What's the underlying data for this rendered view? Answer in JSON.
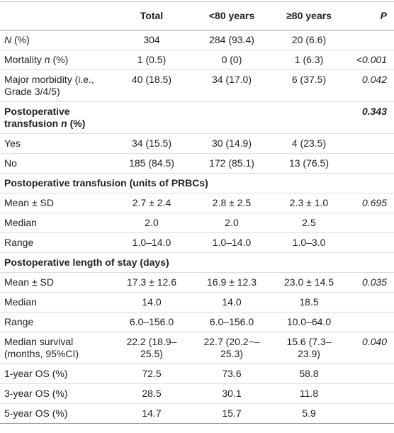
{
  "table": {
    "header": [
      "Total",
      "<80 years",
      "≥80 years",
      "P"
    ],
    "rows": [
      {
        "label": [
          {
            "text": "N",
            "italic": true
          },
          {
            "text": " (%)"
          }
        ],
        "cells": [
          "304",
          "284 (93.4)",
          "20 (6.6)"
        ]
      },
      {
        "label": [
          {
            "text": "Mortality "
          },
          {
            "text": "n",
            "italic": true
          },
          {
            "text": " (%)"
          }
        ],
        "cells": [
          "1 (0.5)",
          "0 (0)",
          "1 (6.3)"
        ],
        "p": "<0.001"
      },
      {
        "label": [
          {
            "text": "Major morbidity (i.e., Grade 3/4/5)"
          }
        ],
        "cells": [
          "40 (18.5)",
          "34 (17.0)",
          "6 (37.5)"
        ],
        "p": "0.042"
      },
      {
        "section": true,
        "label": [
          {
            "text": "Postoperative transfusion "
          },
          {
            "text": "n",
            "italic": true
          },
          {
            "text": " (%)"
          }
        ],
        "p": "0.343"
      },
      {
        "label": [
          {
            "text": "Yes"
          }
        ],
        "cells": [
          "34 (15.5)",
          "30 (14.9)",
          "4 (23.5)"
        ]
      },
      {
        "label": [
          {
            "text": "No"
          }
        ],
        "cells": [
          "185 (84.5)",
          "172 (85.1)",
          "13 (76.5)"
        ]
      },
      {
        "section": true,
        "span": true,
        "label": [
          {
            "text": "Postoperative transfusion (units of PRBCs)"
          }
        ]
      },
      {
        "label": [
          {
            "text": "Mean ± SD"
          }
        ],
        "cells": [
          "2.7 ± 2.4",
          "2.8 ± 2.5",
          "2.3 ± 1.0"
        ],
        "p": "0.695"
      },
      {
        "label": [
          {
            "text": "Median"
          }
        ],
        "cells": [
          "2.0",
          "2.0",
          "2.5"
        ]
      },
      {
        "label": [
          {
            "text": "Range"
          }
        ],
        "cells": [
          "1.0–14.0",
          "1.0–14.0",
          "1.0–3.0"
        ]
      },
      {
        "section": true,
        "span": true,
        "label": [
          {
            "text": "Postoperative length of stay (days)"
          }
        ]
      },
      {
        "label": [
          {
            "text": "Mean ± SD"
          }
        ],
        "cells": [
          "17.3 ± 12.6",
          "16.9 ± 12.3",
          "23.0 ± 14.5"
        ],
        "p": "0.035"
      },
      {
        "label": [
          {
            "text": "Median"
          }
        ],
        "cells": [
          "14.0",
          "14.0",
          "18.5"
        ]
      },
      {
        "label": [
          {
            "text": "Range"
          }
        ],
        "cells": [
          "6.0–156.0",
          "6.0–156.0",
          "10.0–64.0"
        ]
      },
      {
        "label": [
          {
            "text": "Median survival (months, 95%CI)"
          }
        ],
        "cells": [
          "22.2 (18.9–25.5)",
          "22.7 (20.2−–25.3)",
          "15.6 (7.3–23.9)"
        ],
        "p": "0.040"
      },
      {
        "label": [
          {
            "text": "1-year OS (%)"
          }
        ],
        "cells": [
          "72.5",
          "73.6",
          "58.8"
        ]
      },
      {
        "label": [
          {
            "text": "3-year OS (%)"
          }
        ],
        "cells": [
          "28.5",
          "30.1",
          "11.8"
        ]
      },
      {
        "label": [
          {
            "text": "5-year OS (%)"
          }
        ],
        "cells": [
          "14.7",
          "15.7",
          "5.9"
        ]
      }
    ]
  }
}
